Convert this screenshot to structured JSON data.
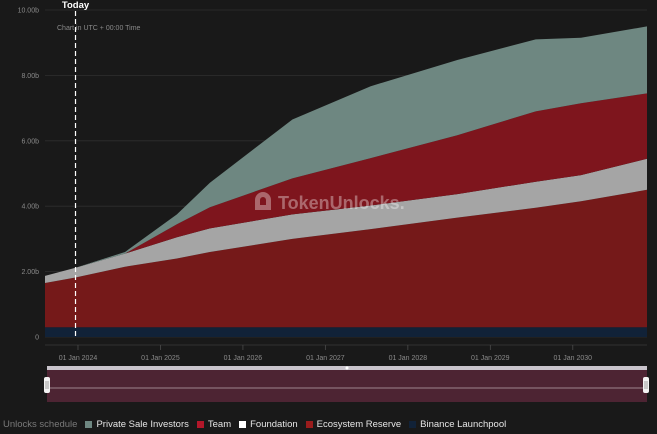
{
  "chart_data": {
    "type": "area",
    "stacked": true,
    "subtitle": "Chart in UTC + 00:00 Time",
    "today_label": "Today",
    "watermark": "TokenUnlocks.",
    "ylim": [
      0,
      10
    ],
    "y_ticks": [
      0,
      2,
      4,
      6,
      8,
      10
    ],
    "y_tick_labels": [
      "0",
      "2.00b",
      "4.00b",
      "6.00b",
      "8.00b",
      "10.00b"
    ],
    "x_ticks": [
      2024.0,
      2025.0,
      2026.0,
      2027.0,
      2028.0,
      2029.0,
      2030.0
    ],
    "x_tick_labels": [
      "01 Jan 2024",
      "01 Jan 2025",
      "01 Jan 2026",
      "01 Jan 2027",
      "01 Jan 2028",
      "01 Jan 2029",
      "01 Jan 2030"
    ],
    "today_x": 2023.97,
    "x": [
      2023.6,
      2023.97,
      2024.57,
      2025.2,
      2025.6,
      2026.6,
      2027.55,
      2028.6,
      2029.55,
      2030.1,
      2030.9
    ],
    "series": [
      {
        "name": "Binance Launchpool",
        "color": "#112238",
        "values": [
          0.3,
          0.3,
          0.3,
          0.3,
          0.3,
          0.3,
          0.3,
          0.3,
          0.3,
          0.3,
          0.3
        ]
      },
      {
        "name": "Ecosystem Reserve",
        "color": "#751919",
        "values": [
          1.35,
          1.52,
          1.85,
          2.1,
          2.3,
          2.7,
          3.0,
          3.35,
          3.65,
          3.85,
          4.2
        ]
      },
      {
        "name": "Foundation",
        "color": "#a5a5a5",
        "values": [
          0.22,
          0.3,
          0.4,
          0.65,
          0.72,
          0.75,
          0.72,
          0.72,
          0.8,
          0.8,
          0.95
        ]
      },
      {
        "name": "Team",
        "color": "#7e151d",
        "values": [
          0,
          0,
          0,
          0.4,
          0.65,
          1.1,
          1.45,
          1.8,
          2.15,
          2.2,
          2.0
        ]
      },
      {
        "name": "Private Sale Investors",
        "color": "#6e8781",
        "values": [
          0,
          0,
          0.05,
          0.3,
          0.75,
          1.8,
          2.2,
          2.3,
          2.2,
          2.0,
          2.05
        ]
      }
    ]
  },
  "legend": {
    "title": "Unlocks schedule",
    "items": [
      {
        "label": "Private Sale Investors",
        "color": "#6e8781"
      },
      {
        "label": "Team",
        "color": "#b3172a"
      },
      {
        "label": "Foundation",
        "color": "#ffffff"
      },
      {
        "label": "Ecosystem Reserve",
        "color": "#9a1c1c"
      },
      {
        "label": "Binance Launchpool",
        "color": "#112238"
      }
    ]
  }
}
